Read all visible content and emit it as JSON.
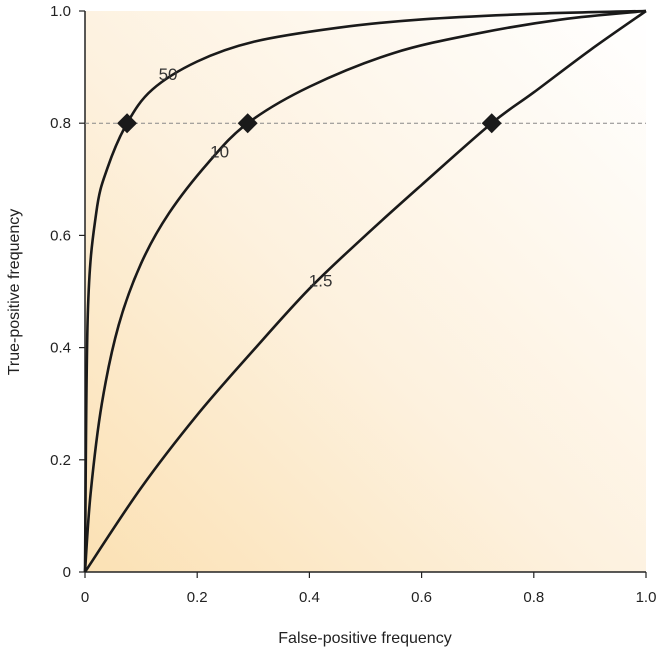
{
  "chart_data": {
    "type": "line",
    "xlabel": "False-positive frequency",
    "ylabel": "True-positive frequency",
    "xlim": [
      0,
      1
    ],
    "ylim": [
      0,
      1
    ],
    "x_ticks": [
      "0",
      "0.2",
      "0.4",
      "0.6",
      "0.8",
      "1.0"
    ],
    "y_ticks": [
      "0",
      "0.2",
      "0.4",
      "0.6",
      "0.8",
      "1.0"
    ],
    "grid": false,
    "reference_line": {
      "y": 0.8,
      "style": "dashed"
    },
    "series": [
      {
        "name": "50",
        "x": [
          0,
          0.005,
          0.02,
          0.04,
          0.075,
          0.12,
          0.2,
          0.3,
          0.45,
          0.6,
          0.8,
          1.0
        ],
        "y": [
          0,
          0.46,
          0.64,
          0.72,
          0.8,
          0.86,
          0.91,
          0.945,
          0.97,
          0.985,
          0.995,
          1.0
        ],
        "marker": {
          "x": 0.075,
          "y": 0.8
        }
      },
      {
        "name": "10",
        "x": [
          0,
          0.01,
          0.03,
          0.06,
          0.1,
          0.15,
          0.22,
          0.29,
          0.4,
          0.55,
          0.7,
          0.85,
          1.0
        ],
        "y": [
          0,
          0.14,
          0.3,
          0.44,
          0.55,
          0.64,
          0.73,
          0.8,
          0.865,
          0.925,
          0.96,
          0.985,
          1.0
        ],
        "marker": {
          "x": 0.29,
          "y": 0.8
        }
      },
      {
        "name": "1.5",
        "x": [
          0,
          0.1,
          0.2,
          0.3,
          0.4,
          0.5,
          0.6,
          0.725,
          0.8,
          0.9,
          1.0
        ],
        "y": [
          0,
          0.15,
          0.28,
          0.395,
          0.505,
          0.6,
          0.69,
          0.8,
          0.855,
          0.93,
          1.0
        ],
        "marker": {
          "x": 0.725,
          "y": 0.8
        }
      }
    ],
    "curve_labels": [
      {
        "text": "50",
        "x": 0.148,
        "y": 0.888
      },
      {
        "text": "10",
        "x": 0.24,
        "y": 0.75
      },
      {
        "text": "1.5",
        "x": 0.42,
        "y": 0.52
      }
    ],
    "colors": {
      "curve": "#1a1a1a",
      "marker": "#1a1a1a",
      "background_tint": "#fbe3bd"
    }
  }
}
